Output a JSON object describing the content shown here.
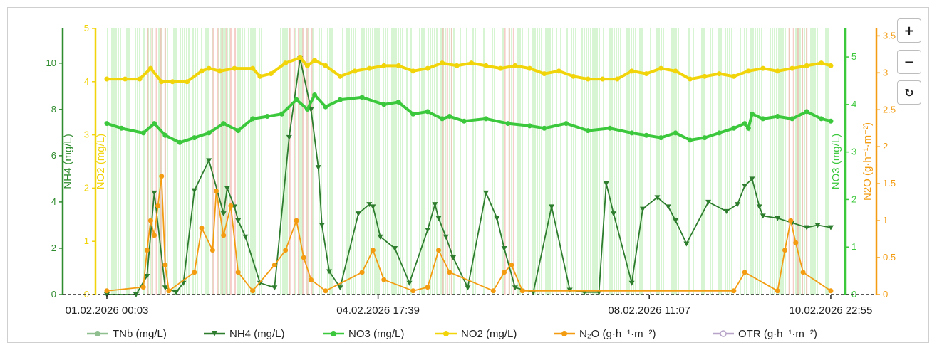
{
  "chart_data": {
    "type": "line",
    "x_ticks": [
      "01.02.2026 00:03",
      "04.02.2026 17:39",
      "08.02.2026 11:07",
      "10.02.2026 22:55"
    ],
    "x_range": [
      "01.02.2026 00:03",
      "10.02.2026 22:55"
    ],
    "axes": {
      "nh4": {
        "label": "NH4 (mg/L)",
        "range": [
          0,
          11.5
        ],
        "ticks": [
          "0",
          "2",
          "4",
          "6",
          "8",
          "10"
        ],
        "color": "#2e8b2e"
      },
      "no2": {
        "label": "NO2 (mg/L)",
        "range": [
          0,
          5
        ],
        "ticks": [
          "0",
          "1",
          "2",
          "3",
          "4",
          "5"
        ],
        "color": "#f2d40a"
      },
      "no3": {
        "label": "NO3 (mg/L)",
        "range": [
          0,
          5.6
        ],
        "ticks": [
          "0",
          "1",
          "2",
          "3",
          "4",
          "5"
        ],
        "color": "#3cc83c"
      },
      "n2o": {
        "label": "N2O (g·h⁻¹·m⁻²)",
        "range": [
          0,
          3.6
        ],
        "ticks": [
          "0",
          "0.5",
          "1",
          "1.5",
          "2",
          "2.5",
          "3",
          "3.5"
        ],
        "color": "#f39c12"
      }
    },
    "series": [
      {
        "name": "TNb (mg/L)",
        "axis": "nh4",
        "color": "#8fbf8f",
        "visible": false,
        "x": [],
        "y": []
      },
      {
        "name": "NH4 (mg/L)",
        "axis": "nh4",
        "color": "#2e7d2e",
        "x": [
          0,
          0.4,
          0.55,
          0.65,
          0.8,
          0.95,
          1.05,
          1.2,
          1.4,
          1.6,
          1.65,
          1.75,
          1.8,
          1.9,
          2.1,
          2.3,
          2.5,
          2.65,
          2.8,
          2.9,
          2.95,
          3.05,
          3.2,
          3.45,
          3.6,
          3.65,
          3.75,
          3.95,
          4.15,
          4.4,
          4.5,
          4.55,
          4.65,
          4.75,
          4.95,
          5.2,
          5.35,
          5.45,
          5.6,
          5.85,
          6.1,
          6.35,
          6.55,
          6.75,
          6.85,
          6.95,
          7.2,
          7.35,
          7.55,
          7.7,
          7.8,
          7.95,
          8.25,
          8.5,
          8.65,
          8.75,
          8.85,
          8.95,
          9.0,
          9.2,
          9.4,
          9.6,
          9.75,
          9.93
        ],
        "y": [
          0,
          0,
          0.8,
          4.4,
          0.3,
          0.1,
          0.5,
          4.5,
          5.8,
          3.5,
          4.6,
          3.8,
          3.2,
          2.5,
          0.5,
          0.3,
          6.8,
          10.2,
          8.0,
          5.5,
          3.0,
          1.0,
          0.3,
          3.5,
          3.9,
          3.8,
          2.5,
          2.0,
          0.5,
          2.8,
          3.9,
          3.3,
          2.5,
          1.6,
          0.3,
          4.4,
          3.3,
          2.0,
          0.3,
          0.1,
          3.8,
          0.2,
          0.1,
          0.1,
          4.8,
          3.5,
          0.5,
          3.7,
          4.2,
          3.8,
          3.2,
          2.2,
          4.0,
          3.6,
          3.9,
          4.7,
          5.0,
          3.8,
          3.4,
          3.3,
          3.1,
          2.9,
          3.0,
          2.9
        ]
      },
      {
        "name": "NO3 (mg/L)",
        "axis": "no3",
        "color": "#3cc83c",
        "x": [
          0,
          0.2,
          0.5,
          0.65,
          0.8,
          1.0,
          1.2,
          1.4,
          1.6,
          1.8,
          2.0,
          2.2,
          2.4,
          2.6,
          2.75,
          2.85,
          3.0,
          3.2,
          3.5,
          3.8,
          4.0,
          4.2,
          4.4,
          4.6,
          4.7,
          4.9,
          5.2,
          5.5,
          5.8,
          6.0,
          6.3,
          6.6,
          6.9,
          7.2,
          7.4,
          7.6,
          7.8,
          8.0,
          8.2,
          8.4,
          8.6,
          8.75,
          8.8,
          8.85,
          9.0,
          9.2,
          9.4,
          9.6,
          9.8,
          9.93
        ],
        "y": [
          3.6,
          3.5,
          3.4,
          3.6,
          3.35,
          3.2,
          3.3,
          3.4,
          3.6,
          3.45,
          3.7,
          3.75,
          3.8,
          4.1,
          3.9,
          4.2,
          3.95,
          4.1,
          4.15,
          4.0,
          4.05,
          3.8,
          3.85,
          3.7,
          3.75,
          3.65,
          3.7,
          3.6,
          3.55,
          3.5,
          3.6,
          3.45,
          3.5,
          3.4,
          3.35,
          3.3,
          3.4,
          3.25,
          3.3,
          3.4,
          3.5,
          3.6,
          3.5,
          3.8,
          3.7,
          3.75,
          3.7,
          3.85,
          3.7,
          3.65
        ]
      },
      {
        "name": "NO2 (mg/L)",
        "axis": "no2",
        "color": "#f2d40a",
        "x": [
          0,
          0.25,
          0.45,
          0.6,
          0.75,
          0.9,
          1.1,
          1.3,
          1.4,
          1.55,
          1.75,
          2.0,
          2.1,
          2.25,
          2.45,
          2.65,
          2.75,
          2.85,
          3.0,
          3.2,
          3.4,
          3.6,
          3.8,
          4.0,
          4.2,
          4.4,
          4.6,
          4.8,
          5.0,
          5.2,
          5.4,
          5.6,
          5.8,
          6.0,
          6.2,
          6.4,
          6.6,
          6.8,
          7.0,
          7.2,
          7.4,
          7.6,
          7.8,
          8.0,
          8.2,
          8.4,
          8.6,
          8.8,
          9.0,
          9.2,
          9.4,
          9.6,
          9.8,
          9.93
        ],
        "y": [
          4.05,
          4.05,
          4.05,
          4.25,
          4.0,
          4.0,
          4.0,
          4.2,
          4.25,
          4.2,
          4.25,
          4.25,
          4.1,
          4.15,
          4.35,
          4.45,
          4.3,
          4.4,
          4.3,
          4.1,
          4.2,
          4.25,
          4.3,
          4.3,
          4.2,
          4.25,
          4.35,
          4.3,
          4.35,
          4.3,
          4.25,
          4.3,
          4.25,
          4.15,
          4.2,
          4.1,
          4.05,
          4.05,
          4.05,
          4.2,
          4.15,
          4.25,
          4.2,
          4.05,
          4.1,
          4.15,
          4.1,
          4.2,
          4.25,
          4.2,
          4.25,
          4.3,
          4.35,
          4.3
        ]
      },
      {
        "name": "N₂O (g·h⁻¹·m⁻²)",
        "axis": "n2o",
        "color": "#f39c12",
        "x": [
          0,
          0.5,
          0.55,
          0.6,
          0.65,
          0.7,
          0.75,
          0.8,
          0.85,
          1.2,
          1.3,
          1.45,
          1.5,
          1.6,
          1.7,
          1.8,
          2.0,
          2.3,
          2.45,
          2.6,
          2.7,
          2.8,
          3.0,
          3.5,
          3.65,
          3.8,
          4.2,
          4.4,
          4.55,
          4.7,
          5.3,
          5.45,
          5.55,
          5.7,
          8.6,
          8.75,
          9.2,
          9.3,
          9.38,
          9.45,
          9.55,
          9.93
        ],
        "y": [
          0.05,
          0.1,
          0.6,
          1.0,
          0.8,
          1.2,
          1.6,
          0.4,
          0.05,
          0.3,
          0.9,
          0.6,
          1.4,
          0.8,
          1.2,
          0.3,
          0.05,
          0.4,
          0.6,
          1.0,
          0.5,
          0.2,
          0.05,
          0.3,
          0.6,
          0.2,
          0.05,
          0.1,
          0.6,
          0.3,
          0.05,
          0.3,
          0.4,
          0.05,
          0.05,
          0.3,
          0.05,
          0.6,
          1.0,
          0.7,
          0.3,
          0.05
        ]
      },
      {
        "name": "OTR (g·h⁻¹·m⁻²)",
        "axis": "n2o",
        "color": "#b7a4c8",
        "visible": false,
        "x": [],
        "y": []
      }
    ],
    "legend_position": "bottom",
    "background_bands": true
  },
  "controls": {
    "zoom_in": "+",
    "zoom_out": "−",
    "reset": "↻"
  }
}
